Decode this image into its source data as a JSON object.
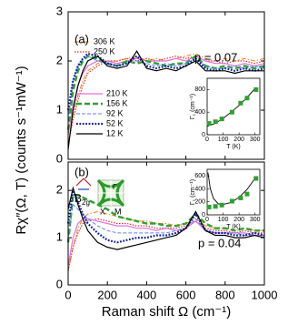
{
  "chart_data": [
    {
      "type": "line",
      "annotations": [
        "(a)",
        "p = 0.07"
      ],
      "x": [
        0,
        25,
        50,
        75,
        100,
        150,
        200,
        250,
        300,
        350,
        400,
        450,
        500,
        550,
        600,
        650,
        700,
        750,
        800,
        850,
        900,
        950,
        1000
      ],
      "xlim": [
        0,
        1000
      ],
      "ylim": [
        0,
        3
      ],
      "yticks": [
        0,
        1,
        2,
        3
      ],
      "series": [
        {
          "name": "306 K",
          "color": "#f08020",
          "style": "dash-dot",
          "values": [
            0.3,
            0.9,
            1.3,
            1.6,
            1.8,
            1.95,
            2.0,
            2.0,
            2.05,
            2.1,
            2.0,
            2.05,
            2.0,
            2.05,
            2.1,
            2.15,
            2.05,
            2.0,
            2.05,
            2.0,
            2.05,
            2.0,
            2.05
          ]
        },
        {
          "name": "250 K",
          "color": "#e03030",
          "style": "dotted",
          "values": [
            0.3,
            0.8,
            1.2,
            1.5,
            1.75,
            1.9,
            2.0,
            2.0,
            2.05,
            2.0,
            2.05,
            2.0,
            2.05,
            2.1,
            2.05,
            2.1,
            2.0,
            2.0,
            1.95,
            2.0,
            2.0,
            1.95,
            2.0
          ]
        },
        {
          "name": "210 K",
          "color": "#e070e0",
          "style": "solid",
          "values": [
            0.5,
            1.1,
            1.5,
            1.75,
            1.9,
            2.0,
            2.0,
            1.95,
            2.0,
            2.05,
            2.0,
            2.0,
            2.0,
            2.05,
            2.0,
            2.1,
            2.0,
            1.95,
            1.95,
            1.9,
            1.95,
            1.9,
            1.95
          ]
        },
        {
          "name": "156 K",
          "color": "#30a030",
          "style": "dashed-thick",
          "values": [
            0.6,
            1.4,
            1.8,
            2.0,
            2.1,
            2.05,
            1.95,
            1.9,
            2.0,
            1.95,
            2.0,
            1.95,
            1.9,
            1.95,
            1.95,
            2.1,
            1.9,
            1.85,
            1.9,
            1.85,
            1.9,
            1.85,
            1.9
          ]
        },
        {
          "name": "92 K",
          "color": "#6080f0",
          "style": "dashed",
          "values": [
            0.8,
            1.6,
            1.9,
            2.05,
            2.1,
            2.0,
            1.95,
            1.9,
            1.95,
            2.0,
            1.95,
            1.9,
            1.95,
            1.9,
            1.95,
            2.05,
            1.9,
            1.85,
            1.85,
            1.9,
            1.85,
            1.9,
            1.85
          ]
        },
        {
          "name": "52 K",
          "color": "#1020a0",
          "style": "dotted-thick",
          "values": [
            1.0,
            1.6,
            1.9,
            2.05,
            2.15,
            2.1,
            1.95,
            1.9,
            1.95,
            2.1,
            1.9,
            1.85,
            1.9,
            1.85,
            1.9,
            2.05,
            1.85,
            1.8,
            1.85,
            1.8,
            1.85,
            1.8,
            1.85
          ]
        },
        {
          "name": "12 K",
          "color": "#000000",
          "style": "solid",
          "values": [
            0.2,
            1.0,
            1.5,
            1.8,
            2.0,
            2.1,
            1.9,
            1.85,
            1.9,
            2.2,
            1.85,
            1.8,
            1.85,
            1.8,
            1.9,
            2.0,
            1.8,
            1.8,
            1.8,
            1.75,
            1.8,
            1.8,
            1.8
          ]
        }
      ]
    },
    {
      "type": "line",
      "annotations": [
        "(b)",
        "p = 0.04",
        "B",
        "2g",
        "X",
        "M",
        "Γ"
      ],
      "xlabel": "Raman shift Ω (cm⁻¹)",
      "ylabel": "Rχ″(Ω, T) (counts s⁻¹mW⁻¹)",
      "x": [
        0,
        25,
        50,
        75,
        100,
        150,
        200,
        250,
        300,
        350,
        400,
        450,
        500,
        550,
        600,
        650,
        700,
        750,
        800,
        850,
        900,
        950,
        1000
      ],
      "xlim": [
        0,
        1000
      ],
      "xticks": [
        0,
        200,
        400,
        600,
        800,
        1000
      ],
      "ylim": [
        0,
        2.6
      ],
      "yticks": [
        0,
        1,
        2
      ],
      "series": [
        {
          "color": "#f08020",
          "style": "dash-dot",
          "values": [
            0.3,
            0.8,
            1.2,
            1.4,
            1.5,
            1.55,
            1.5,
            1.45,
            1.4,
            1.35,
            1.35,
            1.3,
            1.3,
            1.25,
            1.3,
            1.4,
            1.25,
            1.2,
            1.2,
            1.15,
            1.2,
            1.15,
            1.15
          ]
        },
        {
          "color": "#e03030",
          "style": "dotted",
          "values": [
            0.3,
            0.8,
            1.1,
            1.3,
            1.35,
            1.4,
            1.35,
            1.3,
            1.3,
            1.25,
            1.25,
            1.2,
            1.2,
            1.2,
            1.25,
            1.35,
            1.2,
            1.15,
            1.15,
            1.1,
            1.15,
            1.1,
            1.1
          ]
        },
        {
          "color": "#e070e0",
          "style": "solid",
          "values": [
            0.4,
            1.0,
            1.3,
            1.4,
            1.4,
            1.35,
            1.3,
            1.25,
            1.25,
            1.2,
            1.2,
            1.15,
            1.2,
            1.15,
            1.2,
            1.35,
            1.15,
            1.1,
            1.1,
            1.1,
            1.1,
            1.05,
            1.05
          ]
        },
        {
          "color": "#30a030",
          "style": "dashed-thick",
          "values": [
            0.9,
            1.9,
            1.9,
            1.85,
            1.8,
            1.7,
            1.6,
            1.45,
            1.4,
            1.35,
            1.3,
            1.3,
            1.25,
            1.25,
            1.3,
            1.5,
            1.3,
            1.2,
            1.2,
            1.15,
            1.2,
            1.15,
            1.15
          ]
        },
        {
          "color": "#6080f0",
          "style": "dashed",
          "values": [
            1.0,
            1.7,
            1.6,
            1.5,
            1.4,
            1.25,
            1.15,
            1.1,
            1.1,
            1.1,
            1.1,
            1.1,
            1.1,
            1.15,
            1.2,
            1.4,
            1.15,
            1.1,
            1.1,
            1.1,
            1.05,
            1.05,
            1.05
          ]
        },
        {
          "color": "#1020a0",
          "style": "dotted-thick",
          "values": [
            1.3,
            2.0,
            1.75,
            1.5,
            1.3,
            1.1,
            0.95,
            0.9,
            0.95,
            1.0,
            1.0,
            1.05,
            1.05,
            1.1,
            1.2,
            1.5,
            1.15,
            1.1,
            1.1,
            1.05,
            1.05,
            1.1,
            1.05
          ]
        },
        {
          "color": "#000000",
          "style": "solid",
          "values": [
            1.6,
            2.05,
            1.7,
            1.4,
            1.15,
            0.9,
            0.8,
            0.75,
            0.8,
            0.85,
            0.9,
            0.95,
            1.0,
            1.05,
            1.2,
            1.55,
            1.15,
            1.05,
            1.05,
            1.0,
            1.0,
            1.05,
            1.0
          ]
        }
      ]
    },
    {
      "type": "scatter",
      "xlabel": "T (K)",
      "ylabel": "Γ₁ (cm⁻¹)",
      "color": "#30a030",
      "x": [
        12,
        52,
        92,
        156,
        210,
        250,
        306
      ],
      "values": [
        200,
        230,
        280,
        400,
        560,
        650,
        800
      ],
      "fit_x": [
        0,
        50,
        100,
        150,
        200,
        250,
        300
      ],
      "fit_values": [
        150,
        200,
        290,
        400,
        520,
        660,
        820
      ],
      "xlim": [
        0,
        330
      ],
      "xticks": [
        0,
        100,
        200,
        300
      ],
      "ylim": [
        0,
        1000
      ],
      "yticks": [
        0,
        400,
        800
      ]
    },
    {
      "type": "scatter",
      "xlabel": "T (K)",
      "ylabel": "Γ₁ (cm⁻¹)",
      "color": "#30a030",
      "x": [
        12,
        52,
        92,
        156,
        210,
        250,
        306
      ],
      "values": [
        120,
        130,
        150,
        210,
        260,
        320,
        560
      ],
      "fit_x": [
        5,
        20,
        40,
        70,
        100,
        150,
        200,
        250,
        300
      ],
      "fit_values": [
        650,
        400,
        250,
        170,
        160,
        190,
        270,
        390,
        560
      ],
      "xlim": [
        0,
        330
      ],
      "xticks": [
        0,
        100,
        200,
        300
      ],
      "ylim": [
        0,
        700
      ],
      "yticks": [
        0,
        200,
        400,
        600
      ]
    }
  ]
}
